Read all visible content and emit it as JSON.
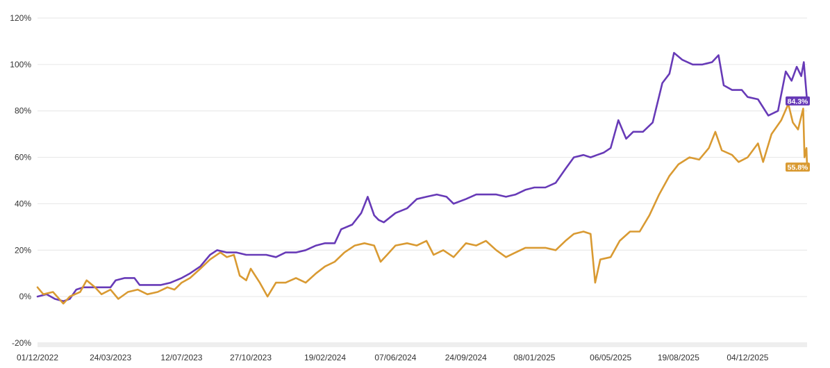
{
  "chart_data": {
    "type": "line",
    "y_unit": "%",
    "ylim": [
      -20,
      120
    ],
    "y_ticks": [
      -20,
      0,
      20,
      40,
      60,
      80,
      100,
      120
    ],
    "y_tick_labels": [
      "-20%",
      "0%",
      "20%",
      "40%",
      "60%",
      "80%",
      "100%",
      "120%"
    ],
    "xlim": [
      "2022-12-01",
      "2026-03-06"
    ],
    "x_ticks": [
      "2022-12-01",
      "2023-03-24",
      "2023-07-12",
      "2023-10-27",
      "2024-02-19",
      "2024-06-07",
      "2024-09-24",
      "2025-01-08",
      "2025-05-06",
      "2025-08-19",
      "2025-12-04"
    ],
    "x_tick_labels": [
      "01/12/2022",
      "24/03/2023",
      "12/07/2023",
      "27/10/2023",
      "19/02/2024",
      "07/06/2024",
      "24/09/2024",
      "08/01/2025",
      "06/05/2025",
      "19/08/2025",
      "04/12/2025"
    ],
    "grid": true,
    "legend": "none",
    "series": [
      {
        "color": "#673ab7",
        "end_label": "84.3%",
        "points": [
          [
            "2022-12-01",
            0
          ],
          [
            "2022-12-15",
            1
          ],
          [
            "2022-12-28",
            -1
          ],
          [
            "2023-01-10",
            -2
          ],
          [
            "2023-01-20",
            -1
          ],
          [
            "2023-01-30",
            3
          ],
          [
            "2023-02-10",
            4
          ],
          [
            "2023-02-25",
            4
          ],
          [
            "2023-03-10",
            4
          ],
          [
            "2023-03-24",
            4
          ],
          [
            "2023-04-01",
            7
          ],
          [
            "2023-04-15",
            8
          ],
          [
            "2023-04-30",
            8
          ],
          [
            "2023-05-08",
            5
          ],
          [
            "2023-05-25",
            5
          ],
          [
            "2023-06-10",
            5
          ],
          [
            "2023-06-25",
            6
          ],
          [
            "2023-07-12",
            8
          ],
          [
            "2023-07-25",
            10
          ],
          [
            "2023-08-10",
            13
          ],
          [
            "2023-08-25",
            18
          ],
          [
            "2023-09-05",
            20
          ],
          [
            "2023-09-20",
            19
          ],
          [
            "2023-10-05",
            19
          ],
          [
            "2023-10-20",
            18
          ],
          [
            "2023-11-05",
            18
          ],
          [
            "2023-11-20",
            18
          ],
          [
            "2023-12-05",
            17
          ],
          [
            "2023-12-20",
            19
          ],
          [
            "2024-01-05",
            19
          ],
          [
            "2024-01-20",
            20
          ],
          [
            "2024-02-05",
            22
          ],
          [
            "2024-02-19",
            23
          ],
          [
            "2024-03-05",
            23
          ],
          [
            "2024-03-15",
            29
          ],
          [
            "2024-04-01",
            31
          ],
          [
            "2024-04-15",
            36
          ],
          [
            "2024-04-25",
            43
          ],
          [
            "2024-05-05",
            35
          ],
          [
            "2024-05-12",
            33
          ],
          [
            "2024-05-20",
            32
          ],
          [
            "2024-06-07",
            36
          ],
          [
            "2024-06-25",
            38
          ],
          [
            "2024-07-10",
            42
          ],
          [
            "2024-07-25",
            43
          ],
          [
            "2024-08-10",
            44
          ],
          [
            "2024-08-25",
            43
          ],
          [
            "2024-09-05",
            40
          ],
          [
            "2024-09-24",
            42
          ],
          [
            "2024-10-10",
            44
          ],
          [
            "2024-10-25",
            44
          ],
          [
            "2024-11-10",
            44
          ],
          [
            "2024-11-25",
            43
          ],
          [
            "2024-12-10",
            44
          ],
          [
            "2024-12-25",
            46
          ],
          [
            "2025-01-08",
            47
          ],
          [
            "2025-01-25",
            47
          ],
          [
            "2025-02-10",
            49
          ],
          [
            "2025-02-25",
            55
          ],
          [
            "2025-03-10",
            60
          ],
          [
            "2025-03-25",
            61
          ],
          [
            "2025-04-05",
            60
          ],
          [
            "2025-04-15",
            61
          ],
          [
            "2025-04-25",
            62
          ],
          [
            "2025-05-06",
            64
          ],
          [
            "2025-05-18",
            76
          ],
          [
            "2025-05-30",
            68
          ],
          [
            "2025-06-10",
            71
          ],
          [
            "2025-06-25",
            71
          ],
          [
            "2025-07-10",
            75
          ],
          [
            "2025-07-25",
            92
          ],
          [
            "2025-08-05",
            96
          ],
          [
            "2025-08-12",
            105
          ],
          [
            "2025-08-25",
            102
          ],
          [
            "2025-09-10",
            100
          ],
          [
            "2025-09-25",
            100
          ],
          [
            "2025-10-10",
            101
          ],
          [
            "2025-10-20",
            104
          ],
          [
            "2025-10-28",
            91
          ],
          [
            "2025-11-10",
            89
          ],
          [
            "2025-11-25",
            89
          ],
          [
            "2025-12-04",
            86
          ],
          [
            "2025-12-20",
            85
          ],
          [
            "2026-01-05",
            78
          ],
          [
            "2026-01-20",
            80
          ],
          [
            "2026-02-01",
            97
          ],
          [
            "2026-02-10",
            93
          ],
          [
            "2026-02-18",
            99
          ],
          [
            "2026-02-25",
            95
          ],
          [
            "2026-03-01",
            101
          ],
          [
            "2026-03-06",
            84.3
          ]
        ]
      },
      {
        "color": "#d99a32",
        "end_label": "55.8%",
        "points": [
          [
            "2022-12-01",
            4
          ],
          [
            "2022-12-10",
            1
          ],
          [
            "2022-12-25",
            2
          ],
          [
            "2023-01-10",
            -3
          ],
          [
            "2023-01-20",
            0
          ],
          [
            "2023-02-05",
            2
          ],
          [
            "2023-02-15",
            7
          ],
          [
            "2023-02-28",
            4
          ],
          [
            "2023-03-10",
            1
          ],
          [
            "2023-03-24",
            3
          ],
          [
            "2023-04-05",
            -1
          ],
          [
            "2023-04-20",
            2
          ],
          [
            "2023-05-05",
            3
          ],
          [
            "2023-05-20",
            1
          ],
          [
            "2023-06-05",
            2
          ],
          [
            "2023-06-20",
            4
          ],
          [
            "2023-07-01",
            3
          ],
          [
            "2023-07-12",
            6
          ],
          [
            "2023-07-25",
            8
          ],
          [
            "2023-08-10",
            12
          ],
          [
            "2023-08-25",
            16
          ],
          [
            "2023-09-10",
            19
          ],
          [
            "2023-09-20",
            17
          ],
          [
            "2023-10-01",
            18
          ],
          [
            "2023-10-10",
            9
          ],
          [
            "2023-10-20",
            7
          ],
          [
            "2023-10-27",
            12
          ],
          [
            "2023-11-10",
            6
          ],
          [
            "2023-11-22",
            0
          ],
          [
            "2023-12-05",
            6
          ],
          [
            "2023-12-20",
            6
          ],
          [
            "2024-01-05",
            8
          ],
          [
            "2024-01-20",
            6
          ],
          [
            "2024-02-05",
            10
          ],
          [
            "2024-02-19",
            13
          ],
          [
            "2024-03-05",
            15
          ],
          [
            "2024-03-20",
            19
          ],
          [
            "2024-04-05",
            22
          ],
          [
            "2024-04-20",
            23
          ],
          [
            "2024-05-05",
            22
          ],
          [
            "2024-05-15",
            15
          ],
          [
            "2024-05-25",
            18
          ],
          [
            "2024-06-07",
            22
          ],
          [
            "2024-06-25",
            23
          ],
          [
            "2024-07-10",
            22
          ],
          [
            "2024-07-25",
            24
          ],
          [
            "2024-08-05",
            18
          ],
          [
            "2024-08-20",
            20
          ],
          [
            "2024-09-05",
            17
          ],
          [
            "2024-09-24",
            23
          ],
          [
            "2024-10-10",
            22
          ],
          [
            "2024-10-25",
            24
          ],
          [
            "2024-11-10",
            20
          ],
          [
            "2024-11-25",
            17
          ],
          [
            "2024-12-10",
            19
          ],
          [
            "2024-12-25",
            21
          ],
          [
            "2025-01-08",
            21
          ],
          [
            "2025-01-25",
            21
          ],
          [
            "2025-02-10",
            20
          ],
          [
            "2025-02-25",
            24
          ],
          [
            "2025-03-10",
            27
          ],
          [
            "2025-03-25",
            28
          ],
          [
            "2025-04-05",
            27
          ],
          [
            "2025-04-12",
            6
          ],
          [
            "2025-04-20",
            16
          ],
          [
            "2025-05-06",
            17
          ],
          [
            "2025-05-20",
            24
          ],
          [
            "2025-06-05",
            28
          ],
          [
            "2025-06-20",
            28
          ],
          [
            "2025-07-05",
            35
          ],
          [
            "2025-07-20",
            44
          ],
          [
            "2025-08-05",
            52
          ],
          [
            "2025-08-19",
            57
          ],
          [
            "2025-09-05",
            60
          ],
          [
            "2025-09-20",
            59
          ],
          [
            "2025-10-05",
            64
          ],
          [
            "2025-10-15",
            71
          ],
          [
            "2025-10-25",
            63
          ],
          [
            "2025-11-10",
            61
          ],
          [
            "2025-11-20",
            58
          ],
          [
            "2025-12-04",
            60
          ],
          [
            "2025-12-20",
            66
          ],
          [
            "2025-12-28",
            58
          ],
          [
            "2026-01-10",
            70
          ],
          [
            "2026-01-25",
            76
          ],
          [
            "2026-02-05",
            83
          ],
          [
            "2026-02-12",
            75
          ],
          [
            "2026-02-20",
            72
          ],
          [
            "2026-02-28",
            81
          ],
          [
            "2026-03-02",
            60
          ],
          [
            "2026-03-05",
            64
          ],
          [
            "2026-03-06",
            55.8
          ]
        ]
      }
    ]
  }
}
